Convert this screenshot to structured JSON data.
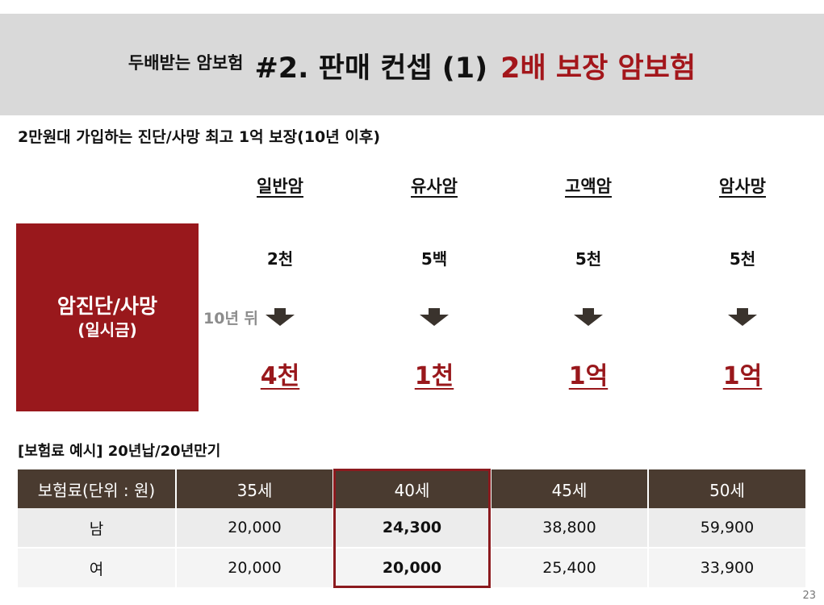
{
  "header": {
    "small": "두배받는 암보험",
    "main": "#2. 판매 컨셉 (1)",
    "highlight": "2배 보장 암보험",
    "highlight_color": "#a3161b"
  },
  "subtitle": "2만원대 가입하는 진단/사망 최고 1억 보장(10년 이후)",
  "coverage": {
    "box_line1": "암진단/사망",
    "box_line2": "(일시금)",
    "after_label": "10년 뒤",
    "columns": [
      {
        "name": "일반암",
        "before": "2천",
        "after": "4천"
      },
      {
        "name": "유사암",
        "before": "5백",
        "after": "1천"
      },
      {
        "name": "고액암",
        "before": "5천",
        "after": "1억"
      },
      {
        "name": "암사망",
        "before": "5천",
        "after": "1억"
      }
    ],
    "arrow_icon": "down-arrow-icon"
  },
  "premium": {
    "title": "[보험료 예시] 20년납/20년만기",
    "headers": [
      "보험료(단위 : 원)",
      "35세",
      "40세",
      "45세",
      "50세"
    ],
    "rows": [
      [
        "남",
        "20,000",
        "24,300",
        "38,800",
        "59,900"
      ],
      [
        "여",
        "20,000",
        "20,000",
        "25,400",
        "33,900"
      ]
    ],
    "highlighted_column": "40세"
  },
  "page_number": "23",
  "colors": {
    "accent": "#99181c",
    "table_header": "#4a3b30",
    "header_band": "#d9d9d9"
  }
}
